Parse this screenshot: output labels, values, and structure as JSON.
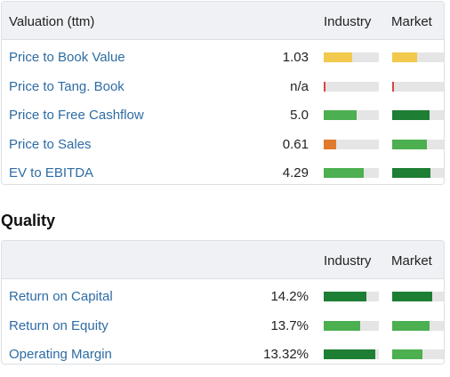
{
  "valuation": {
    "header": {
      "title": "Valuation (ttm)",
      "industry": "Industry",
      "market": "Market"
    },
    "rows": [
      {
        "label": "Price to Book Value",
        "value": "1.03",
        "industry": {
          "level": 0.52,
          "color": "#f2c94c"
        },
        "market": {
          "level": 0.45,
          "color": "#f2c94c"
        }
      },
      {
        "label": "Price to Tang. Book",
        "value": "n/a",
        "industry": {
          "level": 0.03,
          "color": "#d64545"
        },
        "market": {
          "level": 0.03,
          "color": "#d64545"
        }
      },
      {
        "label": "Price to Free Cashflow",
        "value": "5.0",
        "industry": {
          "level": 0.6,
          "color": "#4caf50"
        },
        "market": {
          "level": 0.68,
          "color": "#1e7e34"
        }
      },
      {
        "label": "Price to Sales",
        "value": "0.61",
        "industry": {
          "level": 0.23,
          "color": "#e07a2e"
        },
        "market": {
          "level": 0.63,
          "color": "#4caf50"
        }
      },
      {
        "label": "EV to EBITDA",
        "value": "4.29",
        "industry": {
          "level": 0.73,
          "color": "#4caf50"
        },
        "market": {
          "level": 0.7,
          "color": "#1e7e34"
        }
      }
    ]
  },
  "quality": {
    "section_title": "Quality",
    "header": {
      "title": "",
      "industry": "Industry",
      "market": "Market"
    },
    "rows": [
      {
        "label": "Return on Capital",
        "value": "14.2%",
        "industry": {
          "level": 0.78,
          "color": "#1e7e34"
        },
        "market": {
          "level": 0.72,
          "color": "#1e7e34"
        }
      },
      {
        "label": "Return on Equity",
        "value": "13.7%",
        "industry": {
          "level": 0.66,
          "color": "#4caf50"
        },
        "market": {
          "level": 0.68,
          "color": "#4caf50"
        }
      },
      {
        "label": "Operating Margin",
        "value": "13.32%",
        "industry": {
          "level": 0.93,
          "color": "#1e7e34"
        },
        "market": {
          "level": 0.55,
          "color": "#4caf50"
        }
      }
    ]
  }
}
